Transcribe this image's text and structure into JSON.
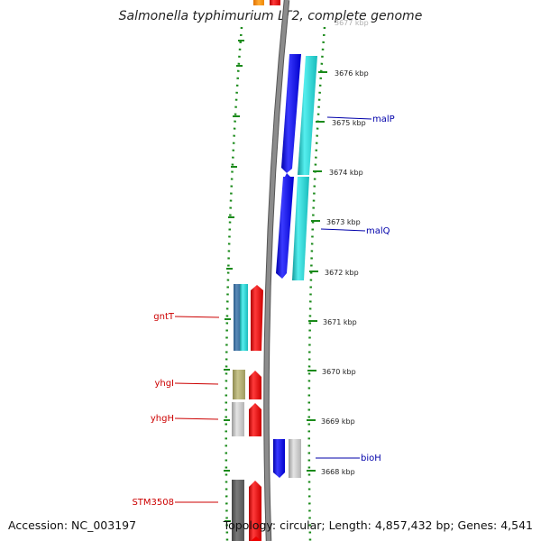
{
  "title": "Salmonella typhimurium LT2, complete genome",
  "footer": {
    "accession": "Accession: NC_003197",
    "summary": "Topology: circular; Length: 4,857,432 bp; Genes: 4,541"
  },
  "map": {
    "top_partial_label": "3677 kbp",
    "ticks": [
      "3676 kbp",
      "3675 kbp",
      "3674 kbp",
      "3673 kbp",
      "3672 kbp",
      "3671 kbp",
      "3670 kbp",
      "3669 kbp",
      "3668 kbp"
    ],
    "genes_right": [
      "malP",
      "malQ",
      "bioH"
    ],
    "genes_left": [
      "gntT",
      "yhgI",
      "yhgH",
      "STM3508"
    ],
    "colors": {
      "backbone": "#808080",
      "dots": "#1a8a1a",
      "blue": "#0000ee",
      "cyan": "#22cccc",
      "red": "#ee0000",
      "right_label": "#0000aa",
      "left_label": "#cc0000"
    }
  }
}
